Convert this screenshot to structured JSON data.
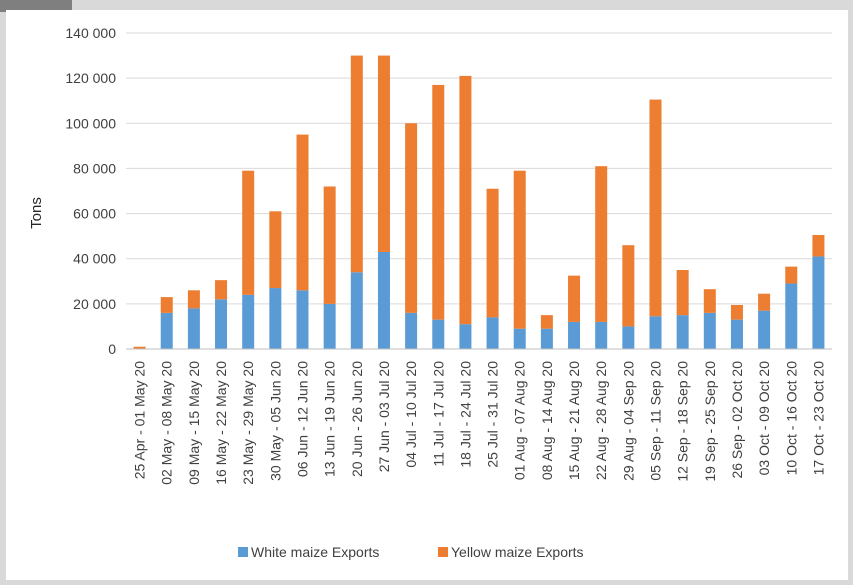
{
  "chart_data": {
    "type": "bar",
    "stacked": true,
    "ylabel": "Tons",
    "ylim": [
      0,
      140000
    ],
    "y_ticks": [
      {
        "value": 0,
        "label": "0"
      },
      {
        "value": 20000,
        "label": "20 000"
      },
      {
        "value": 40000,
        "label": "40 000"
      },
      {
        "value": 60000,
        "label": "60 000"
      },
      {
        "value": 80000,
        "label": "80 000"
      },
      {
        "value": 100000,
        "label": "100 000"
      },
      {
        "value": 120000,
        "label": "120 000"
      },
      {
        "value": 140000,
        "label": "140 000"
      }
    ],
    "grid": true,
    "legend_position": "bottom",
    "categories": [
      "25 Apr - 01 May 20",
      "02 May - 08 May 20",
      "09 May - 15 May 20",
      "16 May - 22 May 20",
      "23 May - 29 May 20",
      "30 May - 05 Jun 20",
      "06 Jun - 12 Jun 20",
      "13 Jun - 19 Jun 20",
      "20 Jun - 26 Jun 20",
      "27 Jun - 03 Jul 20",
      "04 Jul - 10 Jul 20",
      "11 Jul - 17 Jul 20",
      "18 Jul - 24 Jul 20",
      "25 Jul - 31 Jul 20",
      "01 Aug - 07 Aug 20",
      "08 Aug - 14 Aug 20",
      "15 Aug - 21 Aug 20",
      "22 Aug - 28 Aug 20",
      "29 Aug - 04 Sep 20",
      "05 Sep - 11 Sep 20",
      "12 Sep - 18 Sep 20",
      "19 Sep - 25 Sep 20",
      "26 Sep - 02 Oct 20",
      "03 Oct - 09 Oct 20",
      "10 Oct - 16 Oct 20",
      "17 Oct - 23 Oct 20"
    ],
    "series": [
      {
        "name": "White maize Exports",
        "color": "#5b9bd5",
        "values": [
          0,
          16000,
          18000,
          22000,
          24000,
          27000,
          26000,
          20000,
          34000,
          43000,
          16000,
          13000,
          11000,
          14000,
          9000,
          9000,
          12000,
          12000,
          10000,
          14500,
          15000,
          16000,
          13000,
          17000,
          29000,
          41000
        ]
      },
      {
        "name": "Yellow maize Exports",
        "color": "#ed7d31",
        "values": [
          1000,
          7000,
          8000,
          8500,
          55000,
          34000,
          69000,
          52000,
          96000,
          87000,
          84000,
          104000,
          110000,
          57000,
          70000,
          6000,
          20500,
          69000,
          36000,
          96000,
          20000,
          10500,
          6500,
          7500,
          7500,
          9500
        ]
      }
    ]
  }
}
